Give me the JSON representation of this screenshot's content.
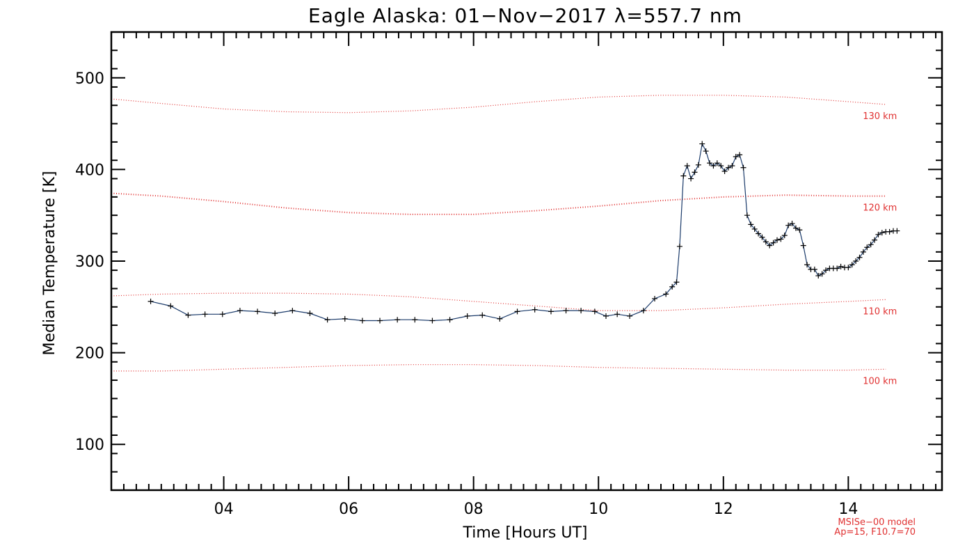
{
  "chart_data": {
    "type": "line",
    "title": "Eagle Alaska: 01−Nov−2017 λ=557.7 nm",
    "xlabel": "Time [Hours UT]",
    "ylabel": "Median Temperature [K]",
    "xlim": [
      2.2,
      15.5
    ],
    "ylim": [
      50,
      550
    ],
    "x_ticks": [
      4,
      6,
      8,
      10,
      12,
      14
    ],
    "x_tick_labels": [
      "04",
      "06",
      "08",
      "10",
      "12",
      "14"
    ],
    "y_ticks": [
      100,
      200,
      300,
      400,
      500
    ],
    "y_tick_labels": [
      "100",
      "200",
      "300",
      "400",
      "500"
    ],
    "grid": false,
    "colors": {
      "series": "#1a3a6a",
      "model": "#e03030",
      "axes": "#000000"
    },
    "series": [
      {
        "x": [
          2.83,
          3.15,
          3.43,
          3.7,
          3.98,
          4.26,
          4.54,
          4.82,
          5.1,
          5.38,
          5.66,
          5.94,
          6.22,
          6.5,
          6.78,
          7.06,
          7.34,
          7.62,
          7.9,
          8.14,
          8.42,
          8.7,
          8.98,
          9.24,
          9.48,
          9.72,
          9.94,
          10.12,
          10.3,
          10.5,
          10.72,
          10.9,
          11.08,
          11.18,
          11.25,
          11.3,
          11.36,
          11.42,
          11.48,
          11.54,
          11.6,
          11.66,
          11.72,
          11.78,
          11.84,
          11.9,
          11.96,
          12.02,
          12.08,
          12.14,
          12.2,
          12.26,
          12.32,
          12.38,
          12.44,
          12.5,
          12.56,
          12.62,
          12.68,
          12.74,
          12.8,
          12.86,
          12.92,
          12.98,
          13.04,
          13.1,
          13.16,
          13.22,
          13.28,
          13.34,
          13.4,
          13.46,
          13.52,
          13.58,
          13.64,
          13.7,
          13.76,
          13.82,
          13.88,
          13.94,
          14.0,
          14.06,
          14.12,
          14.18,
          14.24,
          14.3,
          14.36,
          14.42,
          14.48,
          14.54,
          14.6,
          14.66,
          14.72,
          14.78
        ],
        "y": [
          256,
          251,
          241,
          242,
          242,
          246,
          245,
          243,
          246,
          243,
          236,
          237,
          235,
          235,
          236,
          236,
          235,
          236,
          240,
          241,
          237,
          245,
          247,
          245,
          246,
          246,
          245,
          240,
          242,
          240,
          246,
          259,
          264,
          272,
          277,
          316,
          393,
          404,
          390,
          397,
          405,
          428,
          420,
          407,
          404,
          407,
          404,
          398,
          402,
          404,
          414,
          416,
          402,
          350,
          340,
          335,
          330,
          326,
          321,
          317,
          320,
          323,
          324,
          328,
          339,
          341,
          336,
          334,
          317,
          296,
          291,
          291,
          284,
          286,
          290,
          292,
          292,
          292,
          294,
          293,
          293,
          296,
          300,
          304,
          310,
          315,
          318,
          323,
          329,
          331,
          332,
          332,
          333,
          333
        ]
      }
    ],
    "reference_curves": [
      {
        "label": "100 km",
        "x": [
          2.2,
          3.0,
          4.0,
          5.0,
          6.0,
          7.0,
          8.0,
          9.0,
          10.0,
          11.0,
          12.0,
          13.0,
          14.0,
          14.6
        ],
        "y": [
          180,
          180,
          182,
          184,
          186,
          187,
          187,
          186,
          184,
          183,
          182,
          181,
          181,
          182
        ]
      },
      {
        "label": "110 km",
        "x": [
          2.2,
          3.0,
          4.0,
          5.0,
          6.0,
          7.0,
          8.0,
          9.0,
          10.0,
          11.0,
          12.0,
          13.0,
          14.0,
          14.6
        ],
        "y": [
          262,
          264,
          265,
          265,
          264,
          261,
          256,
          251,
          246,
          246,
          249,
          253,
          256,
          258
        ]
      },
      {
        "label": "120 km",
        "x": [
          2.2,
          3.0,
          4.0,
          5.0,
          6.0,
          7.0,
          8.0,
          9.0,
          10.0,
          11.0,
          12.0,
          13.0,
          14.0,
          14.6
        ],
        "y": [
          374,
          371,
          365,
          358,
          353,
          351,
          351,
          355,
          360,
          366,
          370,
          372,
          371,
          371
        ]
      },
      {
        "label": "130 km",
        "x": [
          2.2,
          3.0,
          4.0,
          5.0,
          6.0,
          7.0,
          8.0,
          9.0,
          10.0,
          11.0,
          12.0,
          13.0,
          14.0,
          14.6
        ],
        "y": [
          477,
          472,
          466,
          463,
          462,
          464,
          468,
          474,
          479,
          481,
          481,
          479,
          474,
          471
        ]
      }
    ],
    "annotations": [
      "MSISe−00 model",
      "Ap=15, F10.7=70"
    ]
  }
}
